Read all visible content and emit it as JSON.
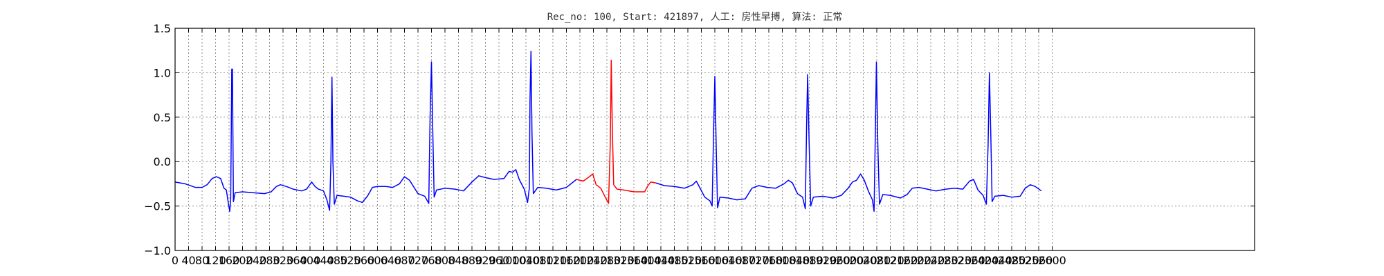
{
  "chart_data": {
    "type": "line",
    "title": "Rec_no: 100, Start: 421897, 人工: 房性早搏, 算法: 正常",
    "xlabel": "",
    "ylabel": "",
    "xlim": [
      0,
      3200
    ],
    "ylim": [
      -1.0,
      1.5
    ],
    "grid": true,
    "x_ticks": [
      0,
      40,
      80,
      120,
      160,
      200,
      240,
      280,
      320,
      360,
      400,
      440,
      480,
      520,
      560,
      600,
      640,
      680,
      720,
      760,
      800,
      840,
      880,
      920,
      960,
      1000,
      1040,
      1080,
      1120,
      1160,
      1200,
      1240,
      1280,
      1320,
      1360,
      1400,
      1440,
      1480,
      1520,
      1560,
      1600,
      1640,
      1680,
      1720,
      1760,
      1800,
      1840,
      1880,
      1920,
      1960,
      2000,
      2040,
      2080,
      2120,
      2160,
      2200,
      2240,
      2280,
      2320,
      2360,
      2400,
      2440,
      2480,
      2520,
      2560,
      2600
    ],
    "x_tick_labels": [
      "0",
      "40",
      "80",
      "120",
      "160",
      "200",
      "240",
      "280",
      "320",
      "360",
      "400",
      "440",
      "480",
      "520",
      "560",
      "600",
      "640",
      "680",
      "720",
      "760",
      "800",
      "840",
      "880",
      "920",
      "960",
      "1000",
      "1040",
      "1080",
      "1120",
      "1160",
      "1200",
      "1240",
      "1280",
      "1320",
      "1360",
      "1400",
      "1440",
      "1480",
      "1520",
      "1560",
      "1600",
      "1640",
      "1680",
      "1720",
      "1760",
      "1800",
      "1840",
      "1880",
      "1920",
      "1960",
      "2000",
      "2040",
      "2080",
      "2120",
      "2160",
      "2200",
      "2240",
      "2280",
      "2320",
      "2360",
      "2400",
      "2440",
      "2480",
      "2520",
      "2560",
      "2600"
    ],
    "y_ticks": [
      -1.0,
      -0.5,
      0.0,
      0.5,
      1.0,
      1.5
    ],
    "y_tick_labels": [
      "−1.0",
      "−0.5",
      "0.0",
      "0.5",
      "1.0",
      "1.5"
    ],
    "colors": {
      "normal": "#0000ff",
      "highlight": "#ff0000"
    },
    "series": [
      {
        "color": "#0000ff",
        "points": [
          [
            0,
            -0.23
          ],
          [
            30,
            -0.25
          ],
          [
            60,
            -0.29
          ],
          [
            80,
            -0.29
          ],
          [
            95,
            -0.26
          ],
          [
            110,
            -0.19
          ],
          [
            122,
            -0.17
          ],
          [
            135,
            -0.19
          ],
          [
            145,
            -0.3
          ],
          [
            152,
            -0.32
          ],
          [
            158,
            -0.47
          ],
          [
            162,
            -0.56
          ],
          [
            165,
            -0.42
          ],
          [
            168,
            1.04
          ],
          [
            170,
            1.04
          ],
          [
            173,
            -0.45
          ],
          [
            178,
            -0.35
          ],
          [
            200,
            -0.34
          ],
          [
            230,
            -0.35
          ],
          [
            265,
            -0.36
          ],
          [
            285,
            -0.34
          ],
          [
            300,
            -0.28
          ],
          [
            312,
            -0.26
          ],
          [
            330,
            -0.28
          ],
          [
            350,
            -0.31
          ],
          [
            375,
            -0.33
          ],
          [
            390,
            -0.31
          ],
          [
            405,
            -0.23
          ],
          [
            415,
            -0.28
          ],
          [
            425,
            -0.31
          ],
          [
            440,
            -0.33
          ],
          [
            450,
            -0.43
          ],
          [
            458,
            -0.55
          ],
          [
            462,
            0.0
          ],
          [
            465,
            0.95
          ],
          [
            468,
            0.0
          ],
          [
            472,
            -0.48
          ],
          [
            480,
            -0.38
          ],
          [
            500,
            -0.39
          ],
          [
            520,
            -0.4
          ],
          [
            540,
            -0.44
          ],
          [
            555,
            -0.46
          ],
          [
            570,
            -0.39
          ],
          [
            585,
            -0.29
          ],
          [
            600,
            -0.28
          ],
          [
            625,
            -0.28
          ],
          [
            645,
            -0.29
          ],
          [
            665,
            -0.25
          ],
          [
            680,
            -0.17
          ],
          [
            695,
            -0.21
          ],
          [
            720,
            -0.36
          ],
          [
            740,
            -0.39
          ],
          [
            752,
            -0.47
          ],
          [
            756,
            0.5
          ],
          [
            760,
            1.12
          ],
          [
            764,
            0.3
          ],
          [
            768,
            -0.4
          ],
          [
            775,
            -0.32
          ],
          [
            800,
            -0.3
          ],
          [
            830,
            -0.31
          ],
          [
            855,
            -0.33
          ],
          [
            880,
            -0.23
          ],
          [
            900,
            -0.16
          ],
          [
            920,
            -0.18
          ],
          [
            945,
            -0.2
          ],
          [
            975,
            -0.19
          ],
          [
            990,
            -0.11
          ],
          [
            1000,
            -0.12
          ],
          [
            1010,
            -0.09
          ],
          [
            1020,
            -0.2
          ],
          [
            1035,
            -0.31
          ],
          [
            1045,
            -0.46
          ],
          [
            1050,
            -0.3
          ],
          [
            1052,
            0.7
          ],
          [
            1055,
            1.24
          ],
          [
            1058,
            0.3
          ],
          [
            1062,
            -0.36
          ],
          [
            1075,
            -0.29
          ],
          [
            1100,
            -0.3
          ],
          [
            1130,
            -0.32
          ],
          [
            1160,
            -0.29
          ],
          [
            1190,
            -0.2
          ]
        ]
      },
      {
        "color": "#ff0000",
        "points": [
          [
            1190,
            -0.2
          ],
          [
            1210,
            -0.22
          ],
          [
            1228,
            -0.17
          ],
          [
            1238,
            -0.14
          ],
          [
            1248,
            -0.26
          ],
          [
            1262,
            -0.3
          ],
          [
            1275,
            -0.4
          ],
          [
            1285,
            -0.47
          ],
          [
            1290,
            0.2
          ],
          [
            1293,
            1.14
          ],
          [
            1296,
            0.4
          ],
          [
            1300,
            -0.26
          ],
          [
            1310,
            -0.31
          ],
          [
            1330,
            -0.32
          ],
          [
            1360,
            -0.34
          ],
          [
            1392,
            -0.34
          ],
          [
            1400,
            -0.28
          ],
          [
            1410,
            -0.23
          ],
          [
            1425,
            -0.24
          ]
        ]
      },
      {
        "color": "#0000ff",
        "points": [
          [
            1425,
            -0.24
          ],
          [
            1450,
            -0.27
          ],
          [
            1480,
            -0.28
          ],
          [
            1510,
            -0.3
          ],
          [
            1535,
            -0.26
          ],
          [
            1545,
            -0.22
          ],
          [
            1555,
            -0.29
          ],
          [
            1570,
            -0.4
          ],
          [
            1585,
            -0.44
          ],
          [
            1592,
            -0.5
          ],
          [
            1596,
            0.3
          ],
          [
            1600,
            0.96
          ],
          [
            1604,
            0.2
          ],
          [
            1608,
            -0.52
          ],
          [
            1615,
            -0.4
          ],
          [
            1640,
            -0.41
          ],
          [
            1665,
            -0.43
          ],
          [
            1690,
            -0.42
          ],
          [
            1710,
            -0.3
          ],
          [
            1730,
            -0.27
          ],
          [
            1755,
            -0.29
          ],
          [
            1780,
            -0.3
          ],
          [
            1805,
            -0.25
          ],
          [
            1818,
            -0.21
          ],
          [
            1830,
            -0.24
          ],
          [
            1845,
            -0.36
          ],
          [
            1860,
            -0.4
          ],
          [
            1868,
            -0.53
          ],
          [
            1872,
            0.4
          ],
          [
            1875,
            0.98
          ],
          [
            1879,
            0.3
          ],
          [
            1884,
            -0.5
          ],
          [
            1892,
            -0.4
          ],
          [
            1920,
            -0.39
          ],
          [
            1950,
            -0.41
          ],
          [
            1975,
            -0.38
          ],
          [
            1995,
            -0.3
          ],
          [
            2008,
            -0.23
          ],
          [
            2020,
            -0.21
          ],
          [
            2032,
            -0.14
          ],
          [
            2043,
            -0.21
          ],
          [
            2055,
            -0.33
          ],
          [
            2067,
            -0.43
          ],
          [
            2072,
            -0.56
          ],
          [
            2076,
            0.4
          ],
          [
            2079,
            1.12
          ],
          [
            2083,
            0.2
          ],
          [
            2088,
            -0.48
          ],
          [
            2098,
            -0.37
          ],
          [
            2120,
            -0.38
          ],
          [
            2150,
            -0.41
          ],
          [
            2170,
            -0.37
          ],
          [
            2185,
            -0.3
          ],
          [
            2205,
            -0.29
          ],
          [
            2230,
            -0.31
          ],
          [
            2255,
            -0.33
          ],
          [
            2285,
            -0.31
          ],
          [
            2310,
            -0.3
          ],
          [
            2335,
            -0.31
          ],
          [
            2355,
            -0.22
          ],
          [
            2367,
            -0.2
          ],
          [
            2380,
            -0.32
          ],
          [
            2395,
            -0.38
          ],
          [
            2405,
            -0.48
          ],
          [
            2410,
            0.2
          ],
          [
            2414,
            1.0
          ],
          [
            2418,
            0.3
          ],
          [
            2422,
            -0.45
          ],
          [
            2430,
            -0.39
          ],
          [
            2455,
            -0.38
          ],
          [
            2480,
            -0.4
          ],
          [
            2505,
            -0.39
          ],
          [
            2520,
            -0.3
          ],
          [
            2535,
            -0.26
          ],
          [
            2550,
            -0.28
          ],
          [
            2568,
            -0.33
          ]
        ]
      }
    ]
  }
}
